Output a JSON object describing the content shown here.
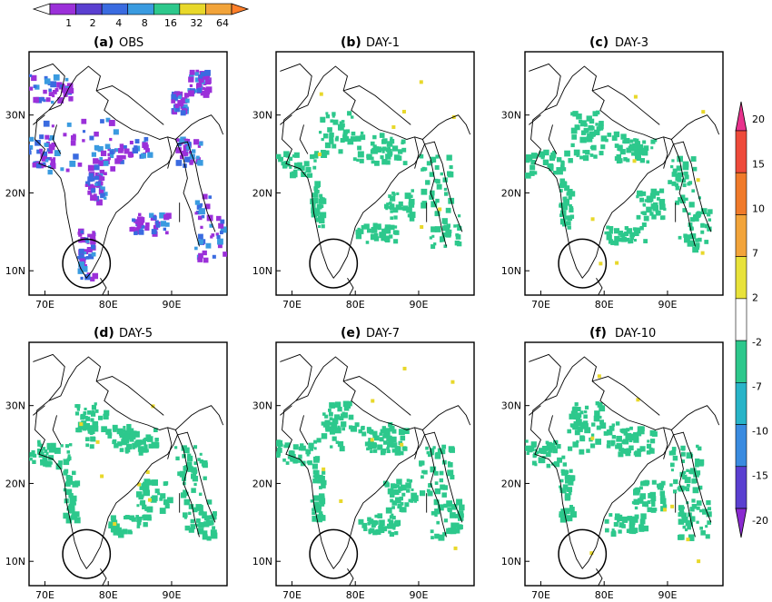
{
  "figure": {
    "top_colorbar": {
      "ticks": [
        "1",
        "2",
        "4",
        "8",
        "16",
        "32",
        "64"
      ],
      "colors": [
        "#9b30d9",
        "#5a3fd0",
        "#3a6be0",
        "#3a9be0",
        "#2dc88c",
        "#e8d82a",
        "#f2a43a",
        "#ff7f2a"
      ]
    },
    "right_colorbar": {
      "ticks": [
        "20",
        "15",
        "10",
        "7",
        "2",
        "-2",
        "-7",
        "-10",
        "-15",
        "-20"
      ],
      "colors_top_to_bottom": [
        "#e8328c",
        "#ee4a3a",
        "#f07a2a",
        "#f2a43a",
        "#e8e23a",
        "#ffffff",
        "#2dc88c",
        "#28b4c8",
        "#3a8be0",
        "#5a3fd0",
        "#8a2ad0"
      ]
    },
    "axis_ticks": {
      "x": [
        "70E",
        "80E",
        "90E"
      ],
      "y": [
        "30N",
        "20N",
        "10N"
      ]
    },
    "panels": [
      {
        "label": "(a)",
        "title": "OBS"
      },
      {
        "label": "(b)",
        "title": "DAY-1"
      },
      {
        "label": "(c)",
        "title": "DAY-3"
      },
      {
        "label": "(d)",
        "title": "DAY-5"
      },
      {
        "label": "(e)",
        "title": "DAY-7"
      },
      {
        "label": "(f)",
        "title": "DAY-10"
      }
    ],
    "colors": {
      "obs_purple": "#9b30d9",
      "obs_blue": "#3a6be0",
      "obs_cyan": "#3a9be0",
      "bias_green": "#2dc88c",
      "bias_yellow": "#e8d82a",
      "coast": "#000000"
    }
  }
}
